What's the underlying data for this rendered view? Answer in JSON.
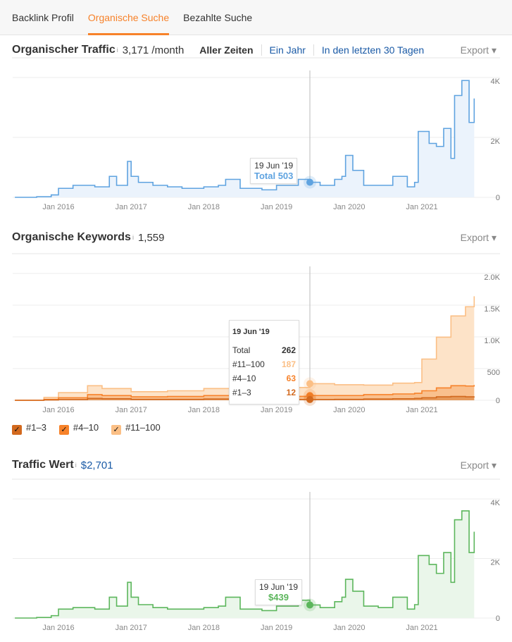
{
  "tabs": [
    "Backlink Profil",
    "Organische Suche",
    "Bezahlte Suche"
  ],
  "info": "i",
  "traffic": {
    "title": "Organischer Traffic",
    "value": "3,171 /month",
    "ranges": [
      "Aller Zeiten",
      "Ein Jahr",
      "In den letzten 30 Tagen"
    ],
    "export": "Export ▾",
    "tooltip_date": "19 Jun '19",
    "tooltip_value": "Total 503"
  },
  "keywords": {
    "title": "Organische Keywords",
    "value": "1,559",
    "export": "Export ▾",
    "tooltip": {
      "date": "19 Jun '19",
      "rows": [
        [
          "Total",
          "262"
        ],
        [
          "#11–100",
          "187"
        ],
        [
          "#4–10",
          "63"
        ],
        [
          "#1–3",
          "12"
        ]
      ]
    },
    "legend": [
      "#1–3",
      "#4–10",
      "#11–100"
    ]
  },
  "value": {
    "title": "Traffic Wert",
    "value": "$2,701",
    "export": "Export ▾",
    "tooltip_date": "19 Jun '19",
    "tooltip_value": "$439"
  },
  "colors": {
    "accent": "#f7822a",
    "blue": "#5fa3e0",
    "green": "#5cb65c",
    "k13": "#d2691e",
    "k410": "#f7822a",
    "k11": "#fbbf85"
  },
  "chart_data": [
    {
      "type": "area",
      "title": "Organischer Traffic",
      "xticks": [
        "Jan 2016",
        "Jan 2017",
        "Jan 2018",
        "Jan 2019",
        "Jan 2020",
        "Jan 2021"
      ],
      "yticks": [
        "0",
        "2K",
        "4K"
      ],
      "ylim": [
        0,
        4000
      ],
      "x": [
        2015.4,
        2015.7,
        2015.9,
        2016.0,
        2016.2,
        2016.5,
        2016.7,
        2016.8,
        2016.95,
        2017.0,
        2017.1,
        2017.3,
        2017.5,
        2017.7,
        2018.0,
        2018.2,
        2018.3,
        2018.5,
        2018.8,
        2019.0,
        2019.3,
        2019.46,
        2019.6,
        2019.8,
        2019.9,
        2019.95,
        2020.05,
        2020.2,
        2020.4,
        2020.6,
        2020.8,
        2020.9,
        2020.95,
        2021.1,
        2021.2,
        2021.3,
        2021.4,
        2021.45,
        2021.55,
        2021.65,
        2021.72
      ],
      "values": [
        0,
        20,
        80,
        300,
        400,
        350,
        700,
        400,
        1200,
        700,
        500,
        400,
        350,
        300,
        350,
        400,
        600,
        300,
        250,
        400,
        600,
        503,
        400,
        600,
        700,
        1400,
        900,
        400,
        400,
        700,
        350,
        500,
        2200,
        1800,
        1700,
        2300,
        1300,
        3400,
        3900,
        2500,
        3300
      ]
    },
    {
      "type": "stacked-area",
      "title": "Organische Keywords",
      "xticks": [
        "Jan 2016",
        "Jan 2017",
        "Jan 2018",
        "Jan 2019",
        "Jan 2020",
        "Jan 2021"
      ],
      "yticks": [
        "0",
        "500",
        "1.0K",
        "1.5K",
        "2.0K"
      ],
      "ylim": [
        0,
        2000
      ],
      "x": [
        2015.4,
        2015.8,
        2016.0,
        2016.4,
        2016.6,
        2017.0,
        2017.5,
        2018.0,
        2018.5,
        2019.0,
        2019.46,
        2019.8,
        2020.2,
        2020.6,
        2020.9,
        2021.0,
        2021.2,
        2021.4,
        2021.6,
        2021.72
      ],
      "series": [
        {
          "name": "#1–3",
          "values": [
            0,
            5,
            10,
            30,
            25,
            15,
            15,
            20,
            12,
            12,
            12,
            15,
            20,
            25,
            30,
            40,
            55,
            60,
            55,
            60
          ]
        },
        {
          "name": "#4–10",
          "values": [
            0,
            10,
            30,
            60,
            50,
            40,
            45,
            55,
            45,
            50,
            63,
            60,
            70,
            75,
            80,
            110,
            140,
            170,
            170,
            180
          ]
        },
        {
          "name": "#11–100",
          "values": [
            0,
            30,
            80,
            140,
            110,
            80,
            90,
            110,
            90,
            140,
            187,
            170,
            150,
            170,
            170,
            500,
            800,
            1100,
            1250,
            1400
          ]
        }
      ]
    },
    {
      "type": "area",
      "title": "Traffic Wert",
      "xticks": [
        "Jan 2016",
        "Jan 2017",
        "Jan 2018",
        "Jan 2019",
        "Jan 2020",
        "Jan 2021"
      ],
      "yticks": [
        "0",
        "2K",
        "4K"
      ],
      "ylim": [
        0,
        4000
      ],
      "x": [
        2015.4,
        2015.7,
        2015.9,
        2016.0,
        2016.2,
        2016.5,
        2016.7,
        2016.8,
        2016.95,
        2017.0,
        2017.1,
        2017.3,
        2017.5,
        2017.7,
        2018.0,
        2018.2,
        2018.3,
        2018.5,
        2018.8,
        2019.0,
        2019.3,
        2019.46,
        2019.6,
        2019.8,
        2019.9,
        2019.95,
        2020.05,
        2020.2,
        2020.4,
        2020.6,
        2020.8,
        2020.9,
        2020.95,
        2021.1,
        2021.2,
        2021.3,
        2021.4,
        2021.45,
        2021.55,
        2021.65,
        2021.72
      ],
      "values": [
        0,
        20,
        80,
        300,
        350,
        300,
        700,
        400,
        1200,
        700,
        450,
        350,
        300,
        300,
        350,
        400,
        700,
        300,
        250,
        400,
        600,
        439,
        350,
        550,
        700,
        1300,
        900,
        400,
        350,
        700,
        300,
        450,
        2100,
        1800,
        1500,
        2200,
        1200,
        3300,
        3600,
        2200,
        2900
      ]
    }
  ]
}
